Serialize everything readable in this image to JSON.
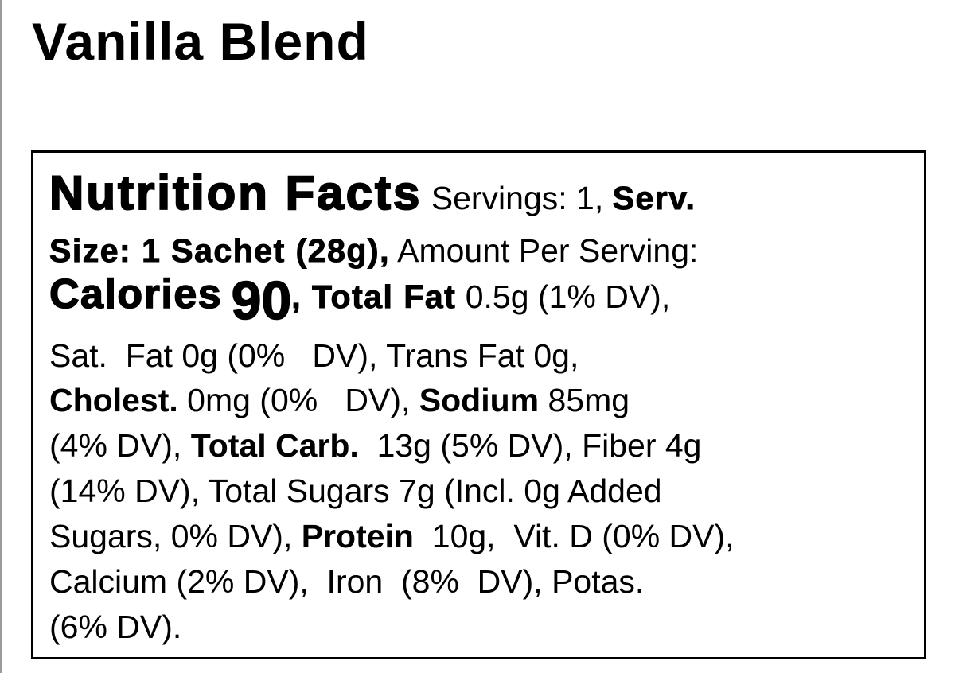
{
  "title": "Vanilla Blend",
  "label": {
    "lines": [
      {
        "runs": [
          {
            "text": "Nutrition Facts",
            "style": "heading"
          },
          {
            "text": " Servings: 1, ",
            "style": "regular"
          },
          {
            "text": "Serv.",
            "style": "heavy"
          }
        ]
      },
      {
        "runs": [
          {
            "text": "Size: 1 Sachet (28g),",
            "style": "heavy"
          },
          {
            "text": " Amount Per Serving:",
            "style": "regular"
          }
        ]
      },
      {
        "runs": [
          {
            "text": "Calories",
            "style": "calories"
          },
          {
            "text": " ",
            "style": "regular"
          },
          {
            "text": "90",
            "style": "big"
          },
          {
            "text": ", Total Fat",
            "style": "heavy"
          },
          {
            "text": " 0.5g (1% DV),",
            "style": "regular"
          }
        ]
      },
      {
        "runs": [
          {
            "text": "Sat.  Fat 0g (0%   DV), Trans Fat 0g,",
            "style": "regular"
          }
        ]
      },
      {
        "runs": [
          {
            "text": "Cholest.",
            "style": "bold"
          },
          {
            "text": " 0mg (0%   DV), ",
            "style": "regular"
          },
          {
            "text": "Sodium",
            "style": "bold"
          },
          {
            "text": " 85mg",
            "style": "regular"
          }
        ]
      },
      {
        "runs": [
          {
            "text": "(4% DV), ",
            "style": "regular"
          },
          {
            "text": "Total Carb.",
            "style": "bold"
          },
          {
            "text": "  13g (5% DV), Fiber 4g",
            "style": "regular"
          }
        ]
      },
      {
        "runs": [
          {
            "text": "(14% DV), Total Sugars 7g (Incl. 0g Added",
            "style": "regular"
          }
        ]
      },
      {
        "runs": [
          {
            "text": "Sugars, 0% DV), ",
            "style": "regular"
          },
          {
            "text": "Protein",
            "style": "bold"
          },
          {
            "text": "  10g,  Vit. D (0% DV),",
            "style": "regular"
          }
        ]
      },
      {
        "runs": [
          {
            "text": "Calcium (2% DV),  Iron  (8%  DV), Potas.",
            "style": "regular"
          }
        ]
      },
      {
        "runs": [
          {
            "text": "(6% DV).",
            "style": "regular"
          }
        ]
      }
    ]
  }
}
